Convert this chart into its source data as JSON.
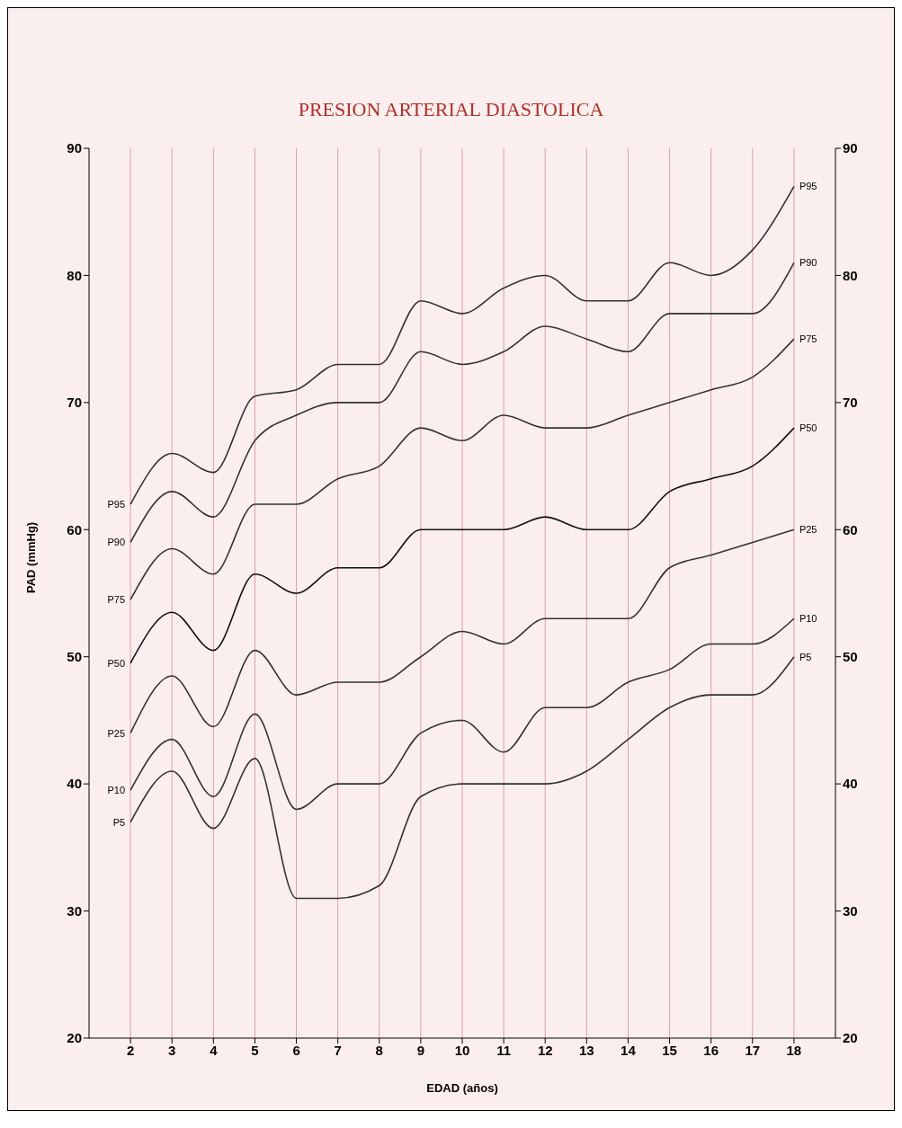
{
  "chart_data": {
    "type": "line",
    "title": "PRESION ARTERIAL DIASTOLICA",
    "xlabel": "EDAD (años)",
    "ylabel": "PAD (mmHg)",
    "x": [
      2,
      3,
      4,
      5,
      6,
      7,
      8,
      9,
      10,
      11,
      12,
      13,
      14,
      15,
      16,
      17,
      18
    ],
    "xlim": [
      1,
      19
    ],
    "xticks": [
      2,
      3,
      4,
      5,
      6,
      7,
      8,
      9,
      10,
      11,
      12,
      13,
      14,
      15,
      16,
      17,
      18
    ],
    "ylim": [
      20,
      90
    ],
    "yticks": [
      20,
      30,
      40,
      50,
      60,
      70,
      80,
      90
    ],
    "y2lim": [
      20,
      90
    ],
    "y2ticks": [
      20,
      30,
      40,
      50,
      60,
      70,
      80,
      90
    ],
    "grid": true,
    "legend": false,
    "marker": "none",
    "line_style": "solid",
    "series": [
      {
        "name": "P95",
        "color": "#333333",
        "values": [
          62,
          66,
          64.5,
          70.5,
          71,
          73,
          73,
          78,
          77,
          79,
          80,
          78,
          78,
          81,
          80,
          82,
          87
        ]
      },
      {
        "name": "P90",
        "color": "#333333",
        "values": [
          59,
          63,
          61,
          67,
          69,
          70,
          70,
          74,
          73,
          74,
          76,
          75,
          74,
          77,
          77,
          77,
          81
        ]
      },
      {
        "name": "P75",
        "color": "#333333",
        "values": [
          54.5,
          58.5,
          56.5,
          62,
          62,
          64,
          65,
          68,
          67,
          69,
          68,
          68,
          69,
          70,
          71,
          72,
          75
        ]
      },
      {
        "name": "P50",
        "color": "#111111",
        "values": [
          49.5,
          53.5,
          50.5,
          56.5,
          55,
          57,
          57,
          60,
          60,
          60,
          61,
          60,
          60,
          63,
          64,
          65,
          68
        ]
      },
      {
        "name": "P25",
        "color": "#333333",
        "values": [
          44,
          48.5,
          44.5,
          50.5,
          47,
          48,
          48,
          50,
          52,
          51,
          53,
          53,
          53,
          57,
          58,
          59,
          60
        ]
      },
      {
        "name": "P10",
        "color": "#333333",
        "values": [
          39.5,
          43.5,
          39,
          45.5,
          38,
          40,
          40,
          44,
          45,
          42.5,
          46,
          46,
          48,
          49,
          51,
          51,
          53
        ]
      },
      {
        "name": "P5",
        "color": "#333333",
        "values": [
          37,
          41,
          36.5,
          42,
          31,
          31,
          32,
          39,
          40,
          40,
          40,
          41,
          43.5,
          46,
          47,
          47,
          50
        ]
      }
    ]
  }
}
